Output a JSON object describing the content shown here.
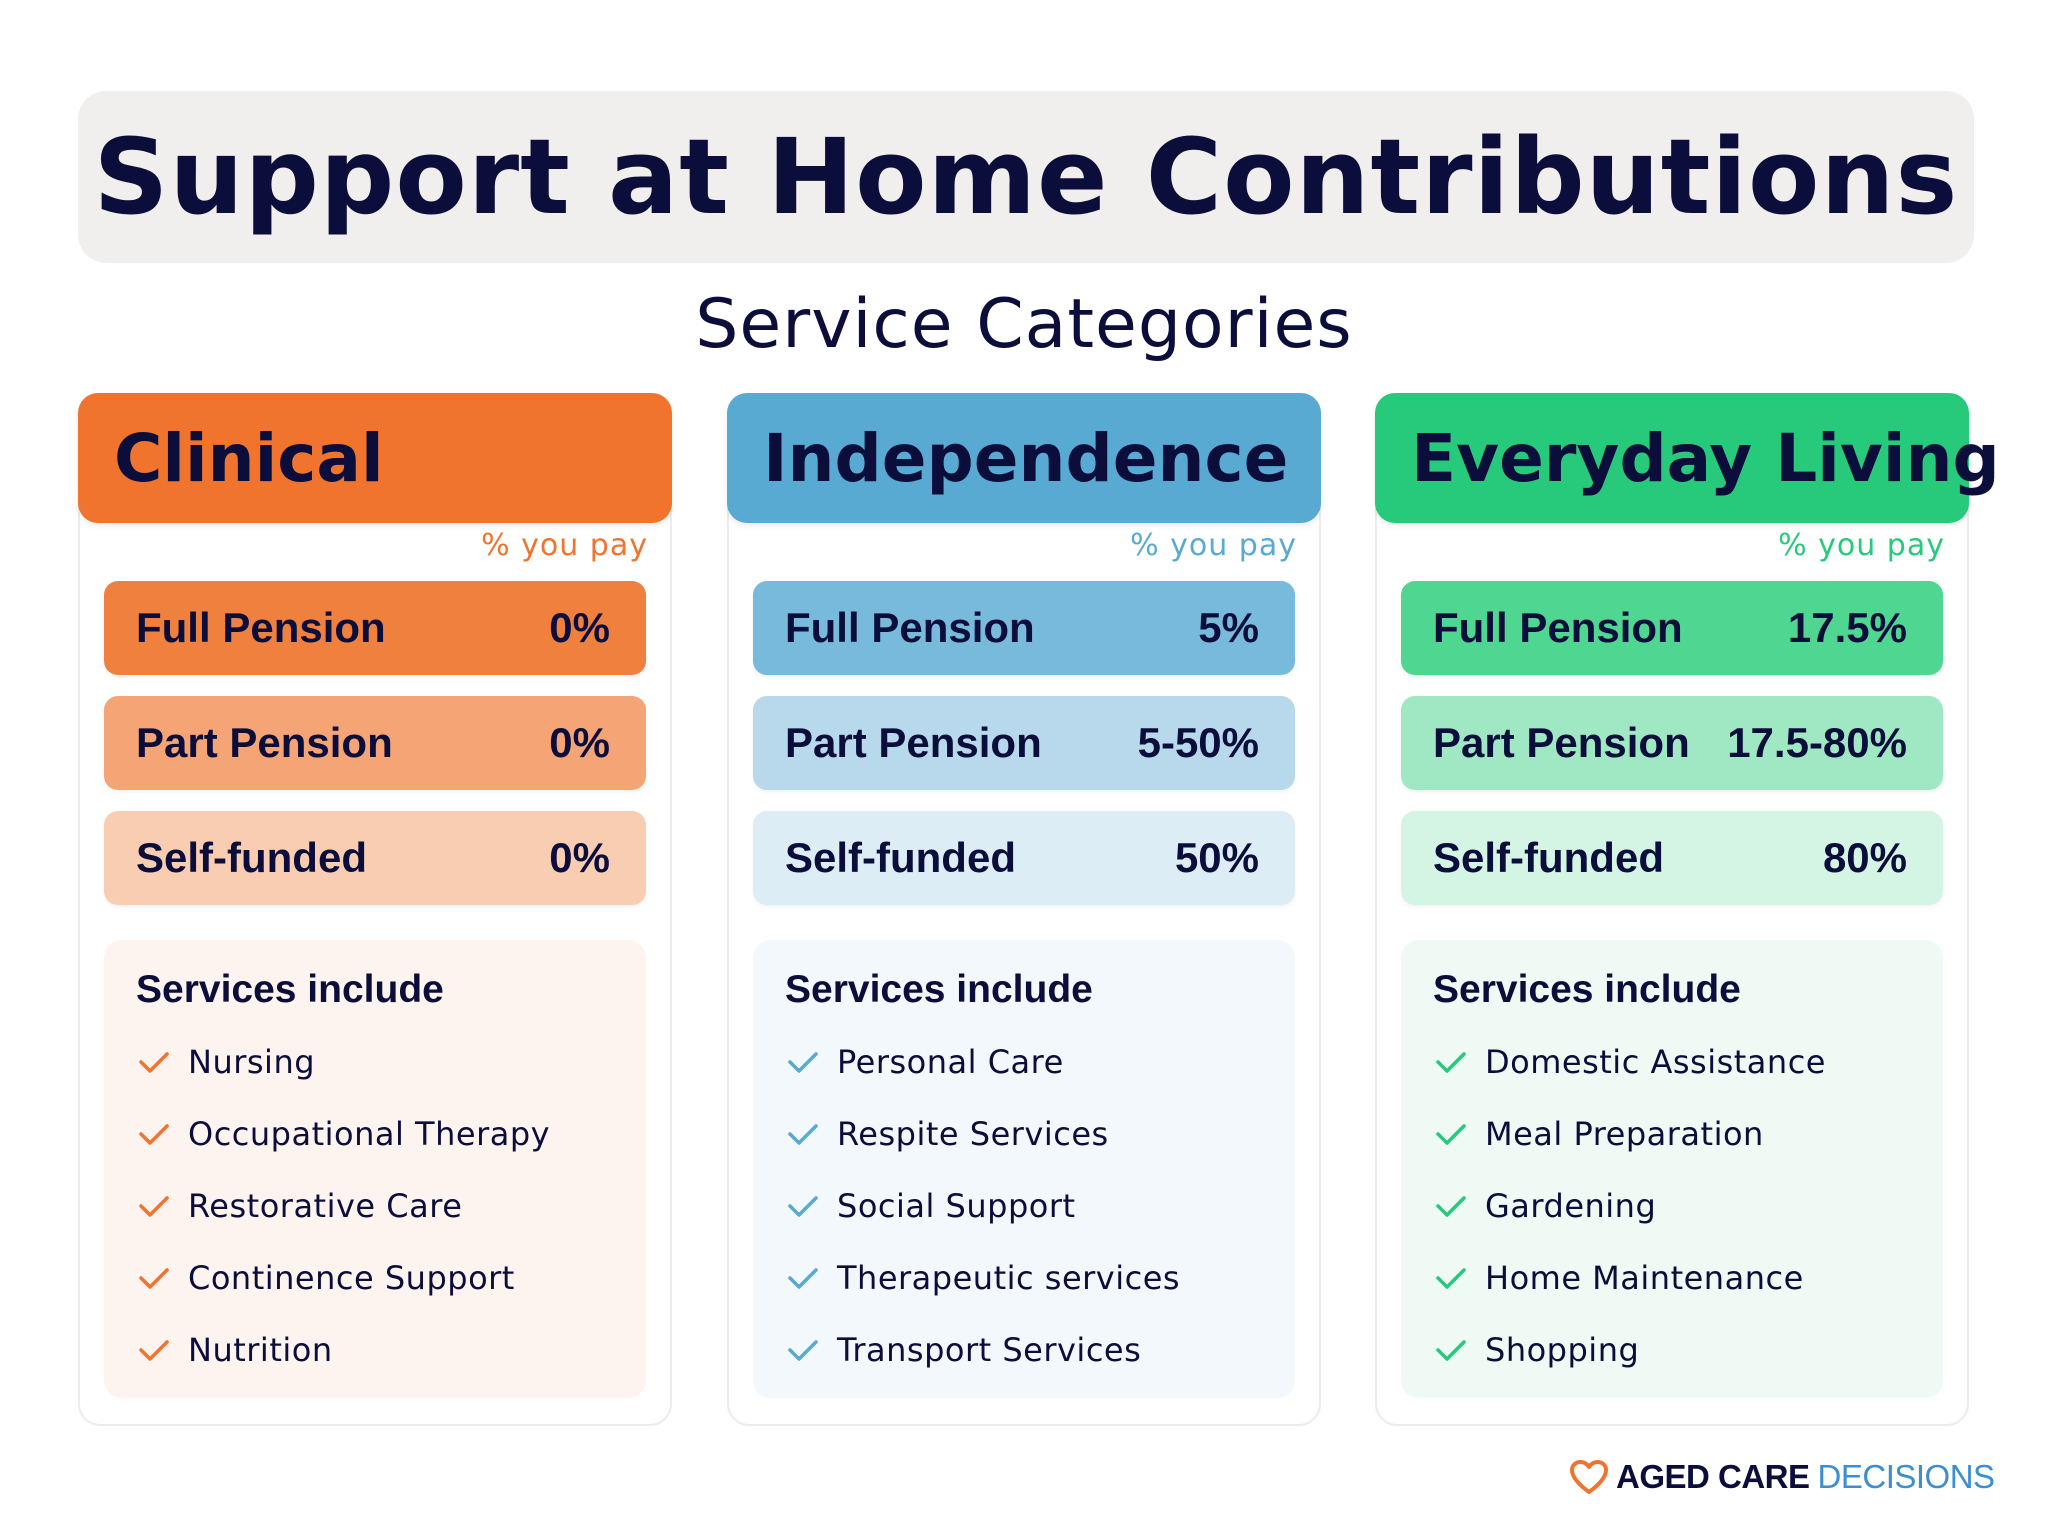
{
  "title": "Support at Home Contributions",
  "subtitle": "Service Categories",
  "categories": [
    {
      "name": "Clinical",
      "pay_label": "% you pay",
      "accent_color": "#f0742d",
      "rows": [
        {
          "label": "Full Pension",
          "value": "0%"
        },
        {
          "label": "Part Pension",
          "value": "0%"
        },
        {
          "label": "Self-funded",
          "value": "0%"
        }
      ],
      "services_heading": "Services include",
      "services": [
        "Nursing",
        "Occupational Therapy",
        "Restorative Care",
        "Continence Support",
        "Nutrition"
      ]
    },
    {
      "name": "Independence",
      "pay_label": "% you pay",
      "accent_color": "#58aad3",
      "rows": [
        {
          "label": "Full Pension",
          "value": "5%"
        },
        {
          "label": "Part Pension",
          "value": "5-50%"
        },
        {
          "label": "Self-funded",
          "value": "50%"
        }
      ],
      "services_heading": "Services include",
      "services": [
        "Personal Care",
        "Respite Services",
        "Social Support",
        "Therapeutic services",
        "Transport Services"
      ]
    },
    {
      "name": "Everyday Living",
      "pay_label": "% you pay",
      "accent_color": "#27c97a",
      "rows": [
        {
          "label": "Full Pension",
          "value": "17.5%"
        },
        {
          "label": "Part Pension",
          "value": "17.5-80%"
        },
        {
          "label": "Self-funded",
          "value": "80%"
        }
      ],
      "services_heading": "Services include",
      "services": [
        "Domestic Assistance",
        "Meal Preparation",
        "Gardening",
        "Home Maintenance",
        "Shopping"
      ]
    }
  ],
  "logo": {
    "icon": "heart-icon",
    "part1": "AGED CARE",
    "part2": "DECISIONS"
  }
}
